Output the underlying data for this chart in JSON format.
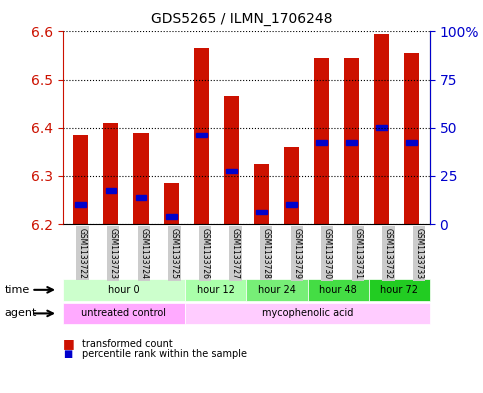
{
  "title": "GDS5265 / ILMN_1706248",
  "samples": [
    "GSM1133722",
    "GSM1133723",
    "GSM1133724",
    "GSM1133725",
    "GSM1133726",
    "GSM1133727",
    "GSM1133728",
    "GSM1133729",
    "GSM1133730",
    "GSM1133731",
    "GSM1133732",
    "GSM1133733"
  ],
  "bar_tops": [
    6.385,
    6.41,
    6.39,
    6.285,
    6.565,
    6.465,
    6.325,
    6.36,
    6.545,
    6.545,
    6.595,
    6.555
  ],
  "bar_base": 6.2,
  "blue_values": [
    6.24,
    6.27,
    6.255,
    6.215,
    6.385,
    6.31,
    6.225,
    6.24,
    6.37,
    6.37,
    6.4,
    6.37
  ],
  "ylim": [
    6.2,
    6.6
  ],
  "yticks_left": [
    6.2,
    6.3,
    6.4,
    6.5,
    6.6
  ],
  "yticks_right": [
    0,
    25,
    50,
    75,
    100
  ],
  "right_ylim": [
    0,
    100
  ],
  "bar_color": "#cc1100",
  "blue_color": "#0000cc",
  "plot_bg": "#ffffff",
  "time_groups": [
    {
      "label": "hour 0",
      "start": 0,
      "end": 3,
      "color": "#ccffcc"
    },
    {
      "label": "hour 12",
      "start": 4,
      "end": 5,
      "color": "#aaffaa"
    },
    {
      "label": "hour 24",
      "start": 6,
      "end": 7,
      "color": "#77ee77"
    },
    {
      "label": "hour 48",
      "start": 8,
      "end": 9,
      "color": "#44dd44"
    },
    {
      "label": "hour 72",
      "start": 10,
      "end": 11,
      "color": "#22cc22"
    }
  ],
  "agent_groups": [
    {
      "label": "untreated control",
      "start": 0,
      "end": 3,
      "color": "#ffaaff"
    },
    {
      "label": "mycophenolic acid",
      "start": 4,
      "end": 11,
      "color": "#ffccff"
    }
  ],
  "legend1_label": "transformed count",
  "legend2_label": "percentile rank within the sample",
  "left_axis_color": "#cc1100",
  "right_axis_color": "#0000cc",
  "tick_bg_color": "#cccccc"
}
